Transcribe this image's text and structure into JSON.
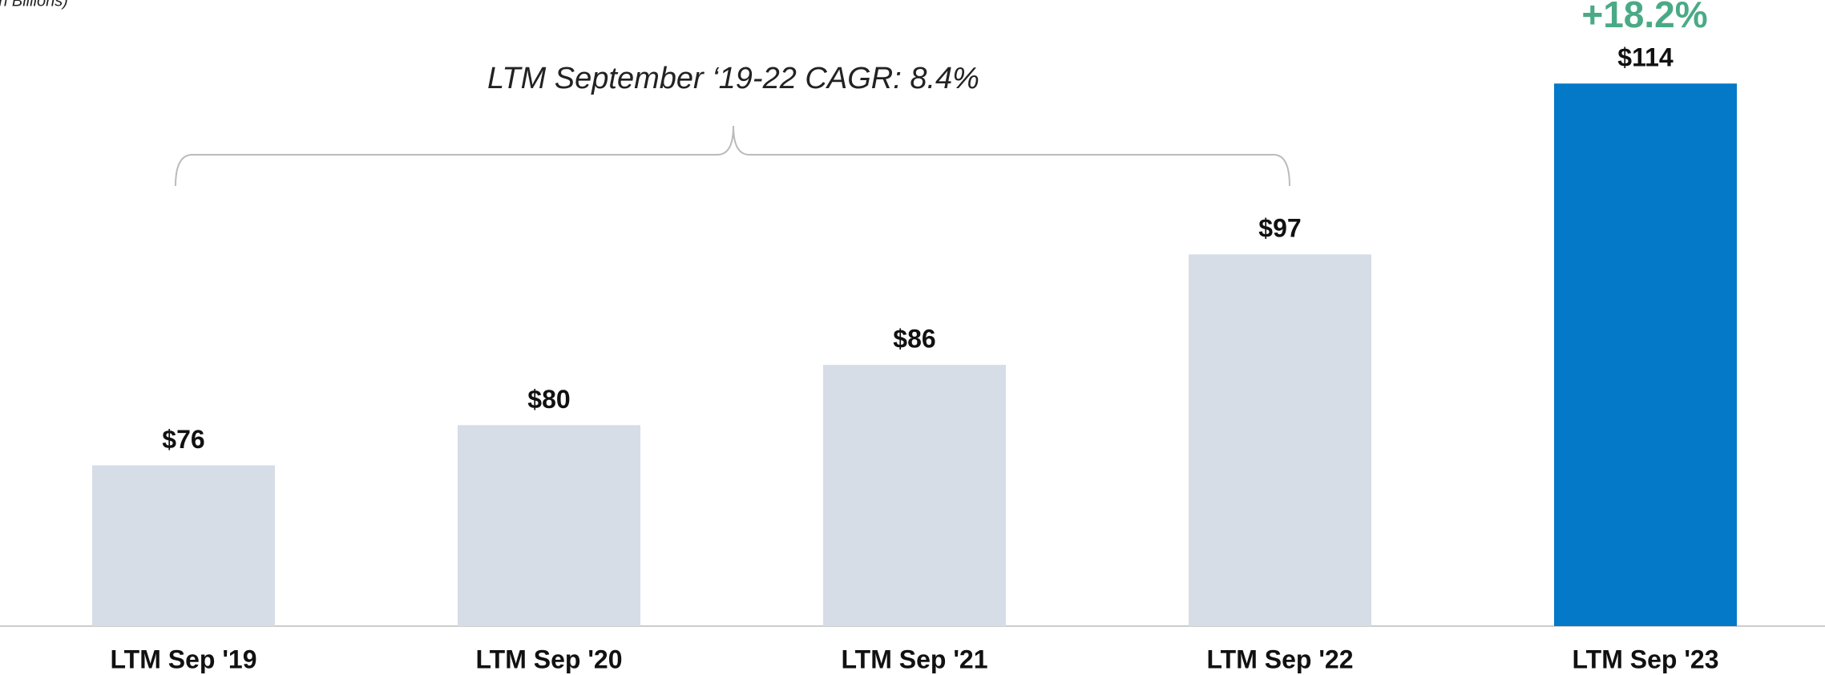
{
  "chart_data": {
    "type": "bar",
    "subtitle": "(In Billions)",
    "categories": [
      "LTM Sep '19",
      "LTM Sep '20",
      "LTM Sep '21",
      "LTM Sep '22",
      "LTM Sep '23"
    ],
    "values": [
      76,
      80,
      86,
      97,
      114
    ],
    "value_labels": [
      "$76",
      "$80",
      "$86",
      "$97",
      "$114"
    ],
    "colors": [
      "#d6dde7",
      "#d6dde7",
      "#d6dde7",
      "#d6dde7",
      "#0479c8"
    ],
    "ylim": [
      60,
      120
    ],
    "annotations": [
      "LTM September ‘19-22 CAGR: 8.4%",
      "+18.2%"
    ]
  }
}
